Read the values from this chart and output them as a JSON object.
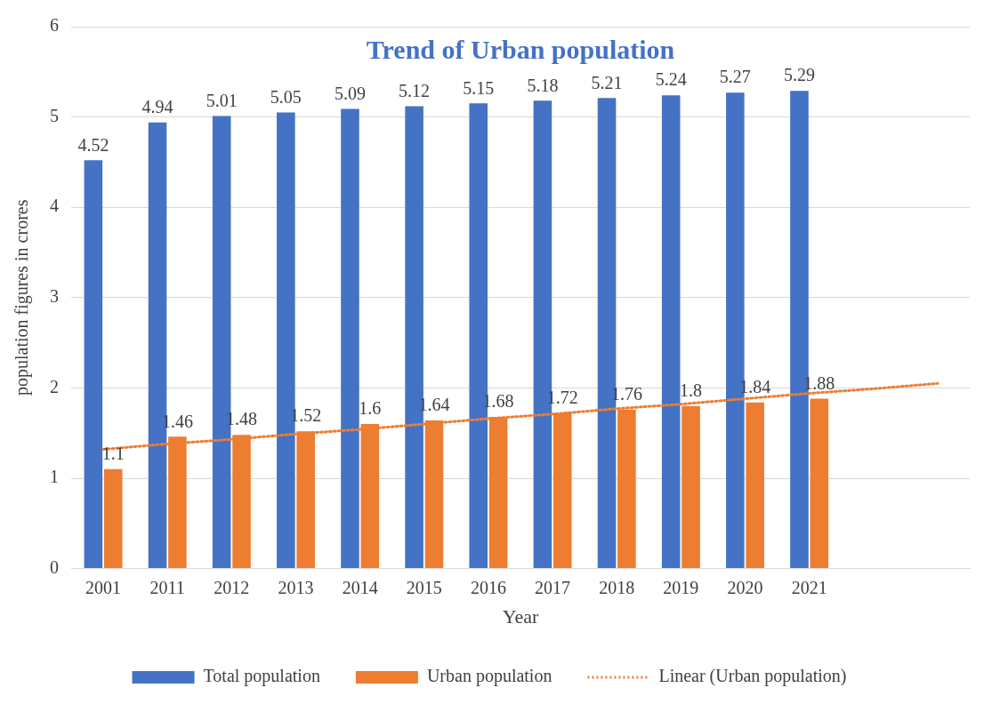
{
  "chart_data": {
    "type": "bar",
    "title": "Trend of Urban population",
    "xlabel": "Year",
    "ylabel": "population figures in crores",
    "categories": [
      "2001",
      "2011",
      "2012",
      "2013",
      "2014",
      "2015",
      "2016",
      "2017",
      "2018",
      "2019",
      "2020",
      "2021",
      null,
      null
    ],
    "series": [
      {
        "name": "Total population",
        "color": "#4472c4",
        "values": [
          4.52,
          4.94,
          5.01,
          5.05,
          5.09,
          5.12,
          5.15,
          5.18,
          5.21,
          5.24,
          5.27,
          5.29,
          null,
          null
        ],
        "value_labels": [
          "4.52",
          "4.94",
          "5.01",
          "5.05",
          "5.09",
          "5.12",
          "5.15",
          "5.18",
          "5.21",
          "5.24",
          "5.27",
          "5.29",
          null,
          null
        ]
      },
      {
        "name": "Urban population",
        "color": "#ed7d31",
        "values": [
          1.1,
          1.46,
          1.48,
          1.52,
          1.6,
          1.64,
          1.68,
          1.72,
          1.76,
          1.8,
          1.84,
          1.88,
          null,
          null
        ],
        "value_labels": [
          "1.1",
          "1.46",
          "1.48",
          "1.52",
          "1.6",
          "1.64",
          "1.68",
          "1.72",
          "1.76",
          "1.8",
          "1.84",
          "1.88",
          null,
          null
        ]
      },
      {
        "name": "Linear (Urban population)",
        "type": "line",
        "color": "#ed7d31",
        "line_style": "dotted",
        "marker": "none",
        "values": [
          1.32,
          1.38,
          1.43,
          1.49,
          1.54,
          1.6,
          1.66,
          1.71,
          1.77,
          1.82,
          1.88,
          1.94,
          1.99,
          2.05
        ]
      }
    ],
    "ylim": [
      0,
      6
    ],
    "yticks": [
      0,
      1,
      2,
      3,
      4,
      5,
      6
    ],
    "grid": "y",
    "legend": "bottom"
  }
}
